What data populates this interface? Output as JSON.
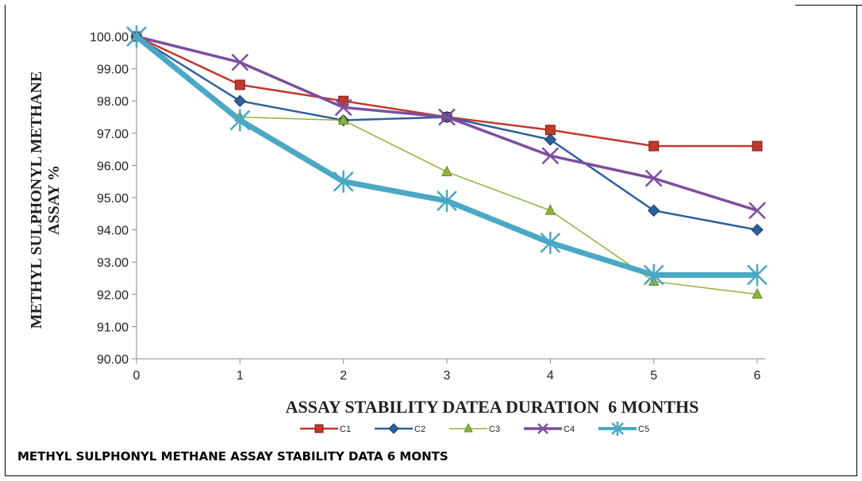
{
  "caption": "METHYL SULPHONYL METHANE ASSAY STABILITY DATA 6 MONTS",
  "chart_data": {
    "type": "line",
    "title": "",
    "xlabel": "ASSAY STABILITY DATEA DURATION  6 MONTHS",
    "ylabel_lines": [
      "METHYL SULPHONYL METHANE",
      "ASSAY %"
    ],
    "x": [
      0,
      1,
      2,
      3,
      4,
      5,
      6
    ],
    "xlim": [
      0,
      6
    ],
    "ylim": [
      90,
      100
    ],
    "yticks": [
      "90.00",
      "91.00",
      "92.00",
      "93.00",
      "94.00",
      "95.00",
      "96.00",
      "97.00",
      "98.00",
      "99.00",
      "100.00"
    ],
    "xticks": [
      "0",
      "1",
      "2",
      "3",
      "4",
      "5",
      "6"
    ],
    "grid": false,
    "legend_position": "bottom",
    "series": [
      {
        "name": "C1",
        "color": "#c0392b",
        "marker": "square",
        "width": 2.5,
        "values": [
          100.0,
          98.5,
          98.0,
          97.5,
          97.1,
          96.6,
          96.6
        ]
      },
      {
        "name": "C2",
        "color": "#2e5f9e",
        "marker": "diamond",
        "width": 2.5,
        "values": [
          100.0,
          98.0,
          97.4,
          97.5,
          96.8,
          94.6,
          94.0
        ]
      },
      {
        "name": "C3",
        "color": "#8db33a",
        "marker": "triangle",
        "width": 1.5,
        "values": [
          100.0,
          97.5,
          97.4,
          95.8,
          94.6,
          92.4,
          92.0
        ]
      },
      {
        "name": "C4",
        "color": "#7d4e9e",
        "marker": "x",
        "width": 3.5,
        "values": [
          100.0,
          99.2,
          97.8,
          97.5,
          96.3,
          95.6,
          94.6
        ]
      },
      {
        "name": "C5",
        "color": "#4aa8c4",
        "marker": "star",
        "width": 7,
        "values": [
          100.0,
          97.4,
          95.5,
          94.9,
          93.6,
          92.6,
          92.6
        ]
      }
    ]
  }
}
